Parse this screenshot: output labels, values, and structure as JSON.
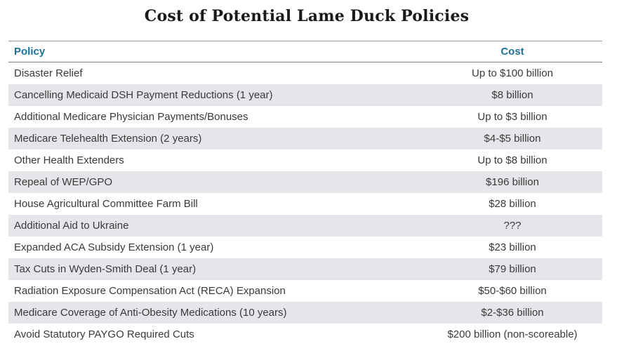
{
  "title": "Cost of Potential Lame Duck Policies",
  "columns": {
    "policy": "Policy",
    "cost": "Cost"
  },
  "rows": [
    {
      "policy": "Disaster Relief",
      "cost": "Up to $100 billion"
    },
    {
      "policy": "Cancelling Medicaid DSH Payment Reductions (1 year)",
      "cost": "$8 billion"
    },
    {
      "policy": "Additional Medicare Physician Payments/Bonuses",
      "cost": "Up to $3 billion"
    },
    {
      "policy": "Medicare Telehealth Extension (2 years)",
      "cost": "$4-$5 billion"
    },
    {
      "policy": "Other Health Extenders",
      "cost": "Up to $8 billion"
    },
    {
      "policy": "Repeal of WEP/GPO",
      "cost": "$196 billion"
    },
    {
      "policy": "House Agricultural Committee Farm Bill",
      "cost": "$28 billion"
    },
    {
      "policy": "Additional Aid to Ukraine",
      "cost": "???"
    },
    {
      "policy": "Expanded ACA Subsidy Extension (1 year)",
      "cost": "$23 billion"
    },
    {
      "policy": "Tax Cuts in Wyden-Smith Deal (1 year)",
      "cost": "$79 billion"
    },
    {
      "policy": "Radiation Exposure Compensation Act (RECA) Expansion",
      "cost": "$50-$60 billion"
    },
    {
      "policy": "Medicare Coverage of Anti-Obesity Medications (10 years)",
      "cost": "$2-$36 billion"
    },
    {
      "policy": "Avoid Statutory PAYGO Required Cuts",
      "cost": "$200 billion (non-scoreable)"
    }
  ],
  "colors": {
    "header_text": "#1e6f97",
    "alt_row": "#e4e6e9"
  }
}
